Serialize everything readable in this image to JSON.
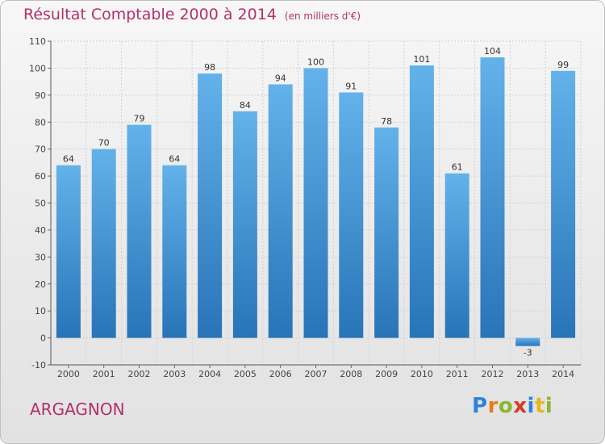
{
  "header": {
    "title": "Résultat Comptable 2000 à 2014",
    "subtitle": "(en milliers d'€)"
  },
  "commune": "ARGAGNON",
  "logo": {
    "letters": [
      "P",
      "r",
      "o",
      "x",
      "i",
      "t",
      "i"
    ]
  },
  "colors": {
    "bar_top": "#63b2ea",
    "bar_bottom": "#2874b8",
    "title": "#b4306a"
  },
  "chart_data": {
    "type": "bar",
    "title": "Résultat Comptable 2000 à 2014",
    "subtitle": "(en milliers d'€)",
    "categories": [
      "2000",
      "2001",
      "2002",
      "2003",
      "2004",
      "2005",
      "2006",
      "2007",
      "2008",
      "2009",
      "2010",
      "2011",
      "2012",
      "2013",
      "2014"
    ],
    "values": [
      64,
      70,
      79,
      64,
      98,
      84,
      94,
      100,
      91,
      78,
      101,
      61,
      104,
      -3,
      99
    ],
    "ylim": [
      -10,
      110
    ],
    "yticks": [
      -10,
      0,
      10,
      20,
      30,
      40,
      50,
      60,
      70,
      80,
      90,
      100,
      110
    ],
    "grid": true,
    "xlabel": "",
    "ylabel": ""
  }
}
